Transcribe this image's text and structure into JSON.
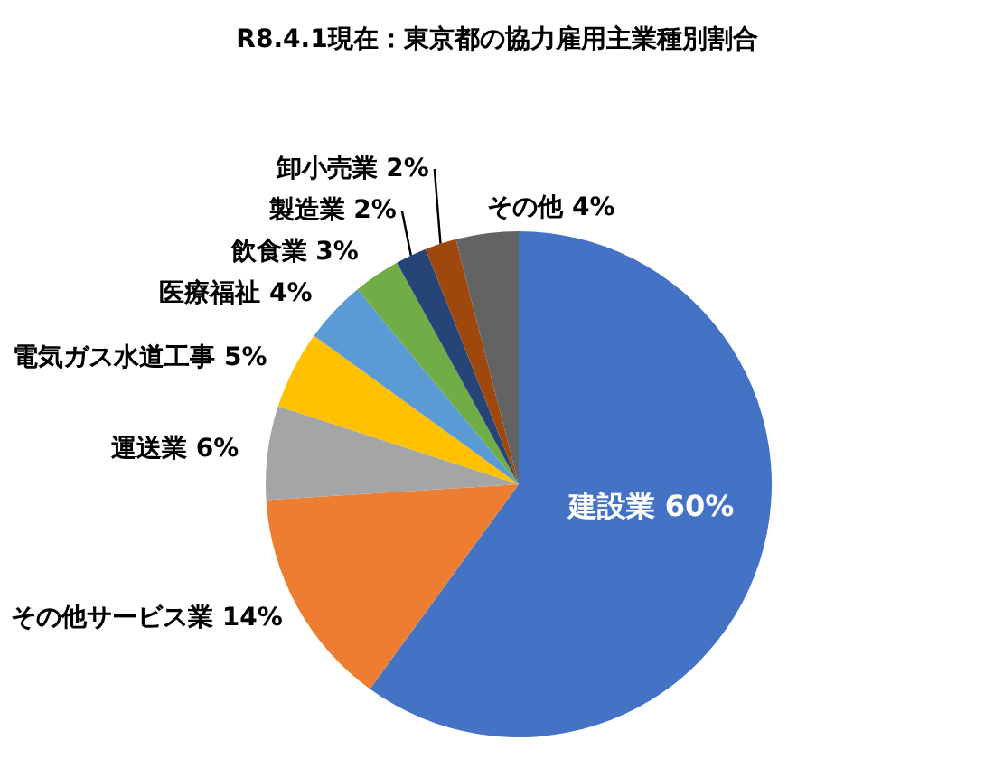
{
  "chart_data": {
    "type": "pie",
    "title": "R8.4.1現在：東京都の協力雇用主業種別割合",
    "categories": [
      "建設業",
      "その他サービス業",
      "運送業",
      "電気ガス水道工事",
      "医療福祉",
      "飲食業",
      "製造業",
      "卸小売業",
      "その他"
    ],
    "values": [
      60,
      14,
      6,
      5,
      4,
      3,
      2,
      2,
      4
    ],
    "value_labels": [
      "60%",
      "14%",
      "6%",
      "5%",
      "4%",
      "3%",
      "2%",
      "2%",
      "4%"
    ],
    "colors": [
      "#4472c4",
      "#ed7d31",
      "#a5a5a5",
      "#ffc000",
      "#5b9bd5",
      "#70ad47",
      "#264478",
      "#9e480e",
      "#636363"
    ]
  }
}
